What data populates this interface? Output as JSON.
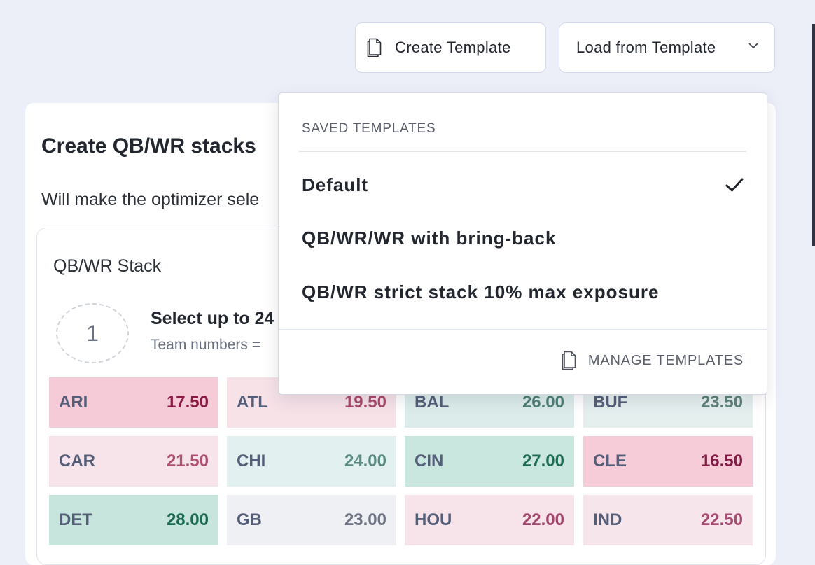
{
  "toolbar": {
    "create_template_label": "Create Template",
    "load_template_label": "Load from Template",
    "create_icon": "document-icon",
    "load_icon": "chevron-down-icon"
  },
  "card": {
    "title": "Create QB/WR stacks",
    "description": "Will make the optimizer sele"
  },
  "stack": {
    "title": "QB/WR Stack",
    "number": "1",
    "select_text": "Select up to 24",
    "team_note": "Team numbers ="
  },
  "teams": [
    {
      "abbr": "ARI",
      "value": "17.50",
      "bg": "#f6cbd8",
      "fg": "#8a1b45"
    },
    {
      "abbr": "ATL",
      "value": "19.50",
      "bg": "#f7e2e8",
      "fg": "#a84a6c"
    },
    {
      "abbr": "BAL",
      "value": "26.00",
      "bg": "#dcecea",
      "fg": "#4f7f76"
    },
    {
      "abbr": "BUF",
      "value": "23.50",
      "bg": "#e5efee",
      "fg": "#5c8078"
    },
    {
      "abbr": "CAR",
      "value": "21.50",
      "bg": "#f7e3ea",
      "fg": "#b0506f"
    },
    {
      "abbr": "CHI",
      "value": "24.00",
      "bg": "#e2f1ef",
      "fg": "#5a8a81"
    },
    {
      "abbr": "CIN",
      "value": "27.00",
      "bg": "#c9e6df",
      "fg": "#1f6b55"
    },
    {
      "abbr": "CLE",
      "value": "16.50",
      "bg": "#f6ccd9",
      "fg": "#821c45"
    },
    {
      "abbr": "DET",
      "value": "28.00",
      "bg": "#c7e5dd",
      "fg": "#1b6a51"
    },
    {
      "abbr": "GB",
      "value": "23.00",
      "bg": "#eff0f4",
      "fg": "#6e7384"
    },
    {
      "abbr": "HOU",
      "value": "22.00",
      "bg": "#f7e3ea",
      "fg": "#a0466a"
    },
    {
      "abbr": "IND",
      "value": "22.50",
      "bg": "#f7e5ec",
      "fg": "#a54c70"
    }
  ],
  "dropdown": {
    "header": "SAVED TEMPLATES",
    "items": [
      {
        "label": "Default",
        "selected": true
      },
      {
        "label": "QB/WR/WR with bring-back",
        "selected": false
      },
      {
        "label": "QB/WR strict stack 10% max exposure",
        "selected": false
      }
    ],
    "manage_label": "MANAGE TEMPLATES",
    "manage_icon": "document-icon",
    "selected_icon": "check-icon"
  }
}
